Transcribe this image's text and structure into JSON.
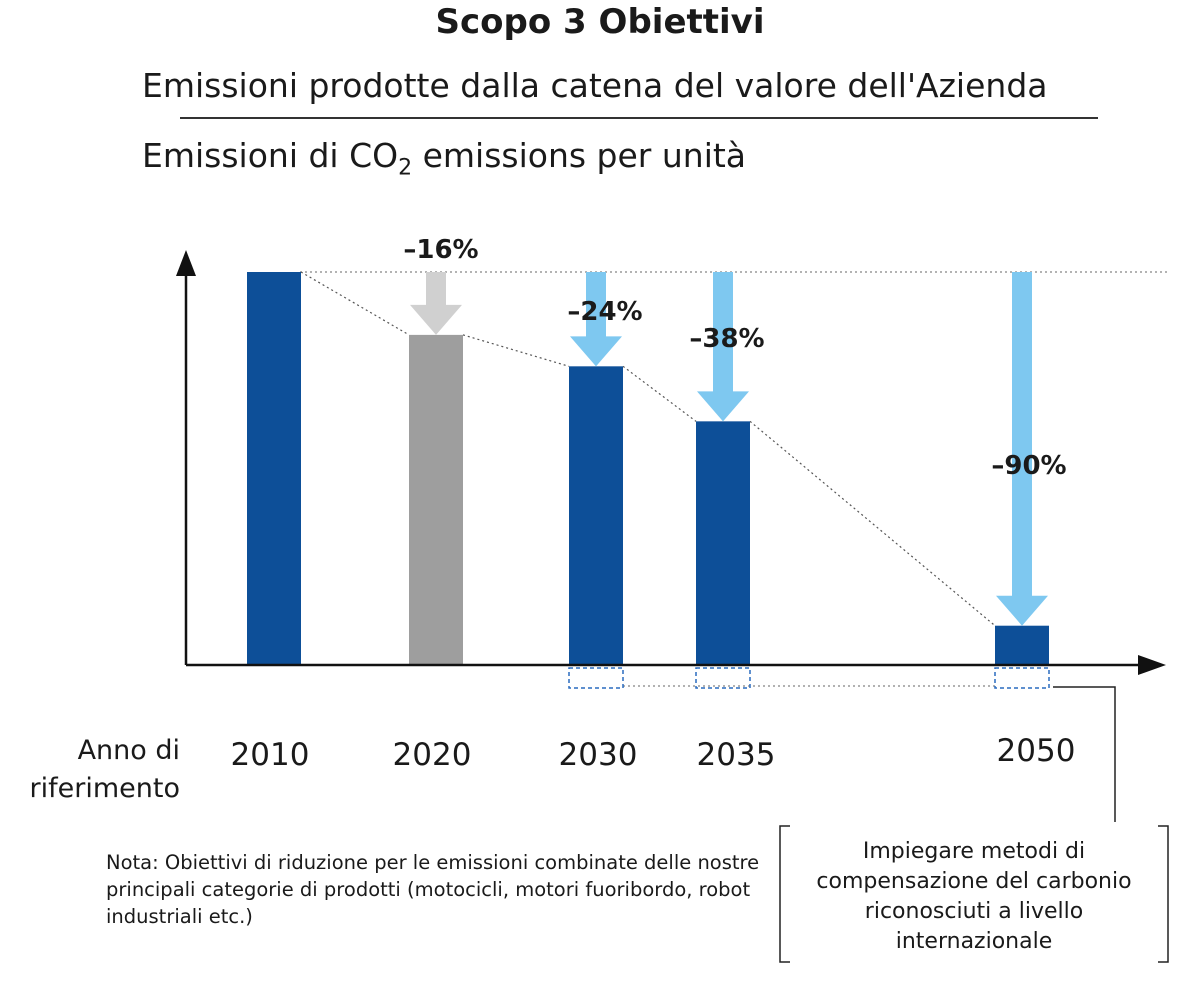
{
  "chart_data": {
    "type": "bar",
    "title": "Scopo 3 Obiettivi",
    "subtitle_line1": "Emissioni prodotte dalla catena del valore dell'Azienda",
    "subtitle_line2_prefix": "Emissioni di CO",
    "subtitle_line2_sub": "2",
    "subtitle_line2_suffix": " emissions per unità",
    "xlabel_line1": "Anno di",
    "xlabel_line2": "riferimento",
    "categories": [
      "2010",
      "2020",
      "2030",
      "2035",
      "2050"
    ],
    "values": [
      100,
      84,
      76,
      62,
      10
    ],
    "reduction_labels": [
      "",
      "–16%",
      "–24%",
      "–38%",
      "–90%"
    ],
    "ylim": [
      0,
      100
    ],
    "bar_colors": [
      "#0d4f98",
      "#9e9e9e",
      "#0d4f98",
      "#0d4f98",
      "#0d4f98"
    ],
    "arrow_colors": [
      "",
      "#d0d0d0",
      "#7ec8f0",
      "#7ec8f0",
      "#7ec8f0"
    ],
    "axis_color": "#111111",
    "note": "Nota: Obiettivi di riduzione per le emissioni combinate delle nostre principali categorie di prodotti (motocicli, motori fuoribordo, robot industriali etc.)",
    "offset_annotation": "Impiegare metodi di compensazione del carbonio riconosciuti a livello internazionale"
  }
}
